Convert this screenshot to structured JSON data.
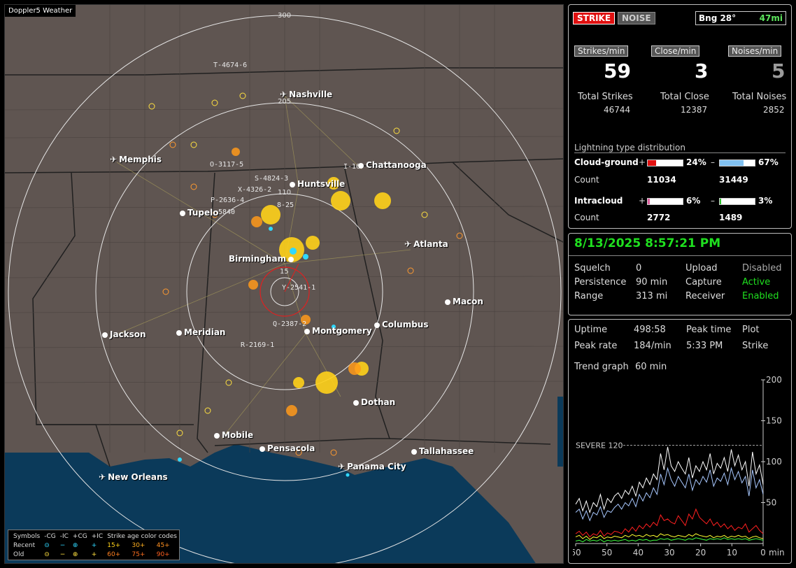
{
  "app": {
    "title": "Doppler5 Weather"
  },
  "map": {
    "ring_labels": [
      "300",
      "205",
      "110",
      "15"
    ],
    "cities": [
      {
        "name": "Nashville",
        "icon": "airport-icon"
      },
      {
        "name": "Memphis",
        "icon": "airport-icon"
      },
      {
        "name": "Chattanooga",
        "icon": "city-dot"
      },
      {
        "name": "Huntsville",
        "icon": "city-dot"
      },
      {
        "name": "Tupelo",
        "icon": "city-dot"
      },
      {
        "name": "Atlanta",
        "icon": "airport-icon"
      },
      {
        "name": "Birmingham",
        "icon": "city-dot"
      },
      {
        "name": "Macon",
        "icon": "city-dot"
      },
      {
        "name": "Jackson",
        "icon": "city-dot"
      },
      {
        "name": "Meridian",
        "icon": "city-dot"
      },
      {
        "name": "Montgomery",
        "icon": "city-dot"
      },
      {
        "name": "Columbus",
        "icon": "city-dot"
      },
      {
        "name": "Dothan",
        "icon": "city-dot"
      },
      {
        "name": "Mobile",
        "icon": "city-dot"
      },
      {
        "name": "Pensacola",
        "icon": "city-dot"
      },
      {
        "name": "Tallahassee",
        "icon": "city-dot"
      },
      {
        "name": "Panama City",
        "icon": "airport-icon"
      },
      {
        "name": "New Orleans",
        "icon": "airport-icon"
      }
    ],
    "storm_labels": [
      "T-4674-6",
      "O-3117-5",
      "S-4824-3",
      "X-4326-2",
      "P-2636-4",
      "8-25",
      "I-16",
      "Y-2541-1",
      "Q-2387-2",
      "R-2169-1",
      "5840"
    ],
    "legend": {
      "symbols_label": "Symbols",
      "recent_label": "Recent",
      "old_label": "Old",
      "headers": [
        "-CG",
        "-IC",
        "+CG",
        "+IC"
      ],
      "age_title": "Strike age color codes",
      "recent_ages": [
        "15+",
        "30+",
        "45+"
      ],
      "old_ages": [
        "60+",
        "75+",
        "90+"
      ]
    }
  },
  "status": {
    "strike_label": "STRIKE",
    "noise_label": "NOISE",
    "bearing": "Bng 28°",
    "distance": "47mi"
  },
  "rates": [
    {
      "label": "Strikes/min",
      "value": "59",
      "total_label": "Total Strikes",
      "total": "46744",
      "color": "#ffffff"
    },
    {
      "label": "Close/min",
      "value": "3",
      "total_label": "Total Close",
      "total": "12387",
      "color": "#ffffff"
    },
    {
      "label": "Noises/min",
      "value": "5",
      "total_label": "Total Noises",
      "total": "2852",
      "color": "#9a9a9a"
    }
  ],
  "distribution": {
    "title": "Lightning type distribution",
    "cloud_ground": {
      "label": "Cloud-ground",
      "pos_pct": "24%",
      "pos_frac": 0.24,
      "neg_pct": "67%",
      "neg_frac": 0.67,
      "count_label": "Count",
      "pos_count": "11034",
      "neg_count": "31449"
    },
    "intracloud": {
      "label": "Intracloud",
      "pos_pct": "6%",
      "pos_frac": 0.06,
      "neg_pct": "3%",
      "neg_frac": 0.03,
      "count_label": "Count",
      "pos_count": "2772",
      "neg_count": "1489"
    },
    "plus": "+",
    "minus": "–"
  },
  "receiver": {
    "datetime": "8/13/2025 8:57:21 PM",
    "squelch_label": "Squelch",
    "squelch": "0",
    "persistence_label": "Persistence",
    "persistence": "90 min",
    "range_label": "Range",
    "range": "313 mi",
    "upload_label": "Upload",
    "upload": "Disabled",
    "capture_label": "Capture",
    "capture": "Active",
    "receiver_label": "Receiver",
    "receiver": "Enabled"
  },
  "stats": {
    "uptime_label": "Uptime",
    "uptime": "498:58",
    "peak_time_label": "Peak time",
    "peak_time": "5:33 PM",
    "plot_label": "Plot",
    "plot": "Strike",
    "peak_rate_label": "Peak rate",
    "peak_rate": "184/min",
    "trend_label": "Trend graph",
    "trend": "60 min"
  },
  "chart_data": {
    "type": "line",
    "x_ticks": [
      "60",
      "50",
      "40",
      "30",
      "20",
      "10",
      "0"
    ],
    "x_unit": "min",
    "y_ticks": [
      "200",
      "150",
      "100",
      "50"
    ],
    "xlim": [
      60,
      0
    ],
    "ylim": [
      0,
      200
    ],
    "threshold": {
      "label": "SEVERE 120",
      "value": 120
    },
    "series": [
      {
        "color": "#ffffff",
        "values": [
          48,
          55,
          40,
          52,
          38,
          50,
          45,
          60,
          42,
          55,
          50,
          58,
          62,
          55,
          65,
          60,
          70,
          58,
          75,
          68,
          80,
          72,
          85,
          78,
          110,
          90,
          118,
          95,
          88,
          100,
          92,
          85,
          105,
          80,
          95,
          88,
          100,
          90,
          110,
          85,
          98,
          92,
          105,
          88,
          115,
          95,
          108,
          90,
          100,
          70,
          112,
          85,
          96,
          72
        ]
      },
      {
        "color": "#a8c8ff",
        "values": [
          38,
          42,
          30,
          40,
          28,
          38,
          35,
          45,
          32,
          40,
          38,
          44,
          48,
          42,
          50,
          46,
          55,
          45,
          60,
          52,
          62,
          56,
          68,
          60,
          85,
          72,
          92,
          78,
          70,
          82,
          75,
          68,
          85,
          65,
          78,
          72,
          82,
          75,
          90,
          70,
          80,
          76,
          86,
          72,
          92,
          78,
          88,
          74,
          82,
          58,
          90,
          68,
          78,
          60
        ]
      },
      {
        "color": "#ff2020",
        "values": [
          12,
          15,
          10,
          14,
          8,
          12,
          10,
          16,
          9,
          13,
          11,
          15,
          14,
          12,
          18,
          14,
          20,
          15,
          22,
          18,
          24,
          20,
          26,
          22,
          35,
          28,
          30,
          26,
          24,
          34,
          28,
          22,
          36,
          30,
          42,
          32,
          28,
          24,
          30,
          22,
          26,
          20,
          24,
          18,
          22,
          16,
          20,
          18,
          24,
          14,
          18,
          22,
          16,
          12
        ]
      },
      {
        "color": "#ffff30",
        "values": [
          8,
          10,
          6,
          9,
          5,
          8,
          7,
          10,
          6,
          8,
          7,
          9,
          8,
          7,
          10,
          8,
          11,
          9,
          10,
          8,
          11,
          9,
          10,
          8,
          12,
          10,
          11,
          9,
          8,
          10,
          9,
          8,
          11,
          9,
          12,
          10,
          9,
          8,
          10,
          7,
          9,
          8,
          10,
          7,
          9,
          8,
          10,
          8,
          9,
          6,
          8,
          9,
          7,
          6
        ]
      },
      {
        "color": "#40ff40",
        "values": [
          3,
          4,
          2,
          5,
          3,
          4,
          3,
          5,
          2,
          4,
          3,
          4,
          3,
          4,
          5,
          3,
          4,
          3,
          5,
          4,
          5,
          3,
          4,
          4,
          6,
          5,
          6,
          4,
          5,
          6,
          5,
          4,
          6,
          5,
          7,
          6,
          5,
          4,
          6,
          5,
          6,
          5,
          7,
          5,
          6,
          5,
          6,
          5,
          6,
          4,
          5,
          6,
          5,
          4
        ]
      }
    ]
  }
}
